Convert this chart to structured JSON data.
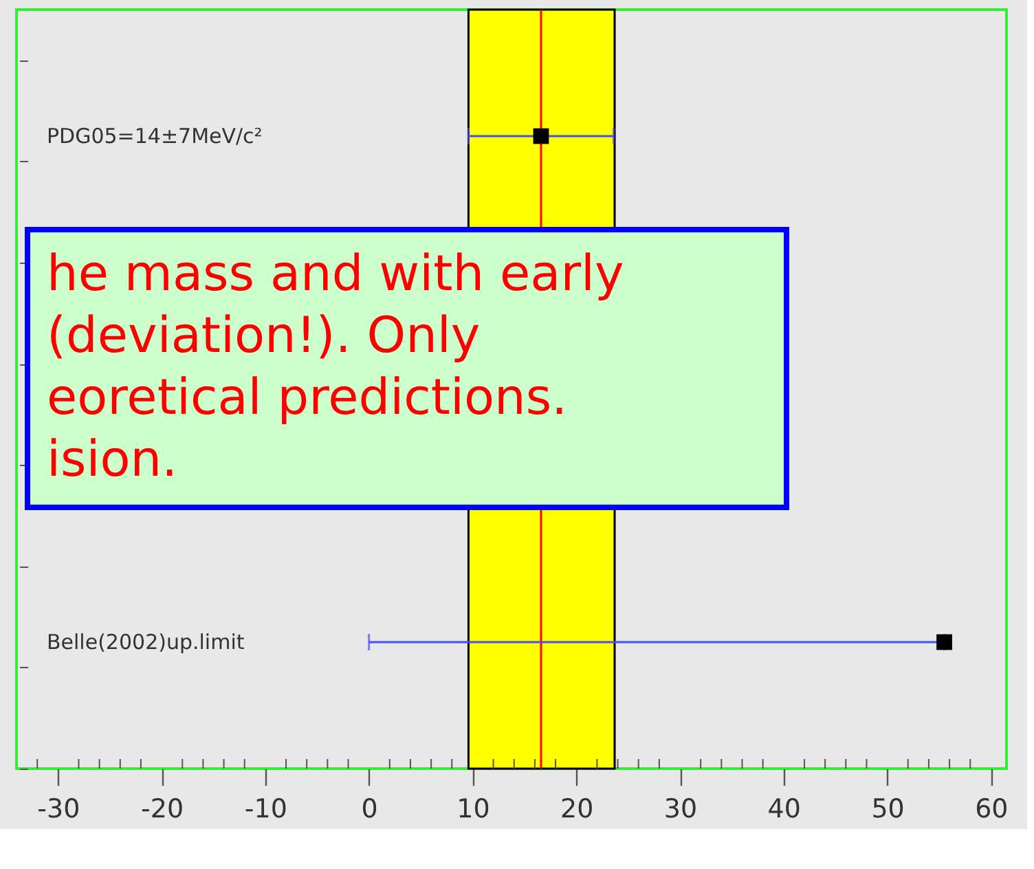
{
  "chart_data": {
    "type": "scatter",
    "orientation": "horizontal",
    "categories": [
      "PDG05=14±7MeV/c²",
      null,
      null,
      null,
      "Belle(2002)up.limit"
    ],
    "series": [
      {
        "color": "#000000",
        "values": [
          16.6,
          null,
          null,
          null,
          55.5
        ],
        "errors": [
          7,
          null,
          null,
          null,
          [
            0,
            55.5
          ]
        ]
      }
    ],
    "marker": "square",
    "xlim": [
      -34,
      61.5
    ],
    "xticks": [
      {
        "value": -32,
        "label": null
      },
      -30,
      {
        "value": -28,
        "label": null
      },
      {
        "value": -26,
        "label": null
      },
      {
        "value": -24,
        "label": null
      },
      {
        "value": -22,
        "label": null
      },
      -20,
      {
        "value": -18,
        "label": null
      },
      {
        "value": -16,
        "label": null
      },
      {
        "value": -14,
        "label": null
      },
      {
        "value": -12,
        "label": null
      },
      -10,
      {
        "value": -8,
        "label": null
      },
      {
        "value": -6,
        "label": null
      },
      {
        "value": -4,
        "label": null
      },
      {
        "value": -2,
        "label": null
      },
      0,
      {
        "value": 2,
        "label": null
      },
      {
        "value": 4,
        "label": null
      },
      {
        "value": 6,
        "label": null
      },
      {
        "value": 8,
        "label": null
      },
      10,
      {
        "value": 12,
        "label": null
      },
      {
        "value": 14,
        "label": null
      },
      {
        "value": 16,
        "label": null
      },
      {
        "value": 18,
        "label": null
      },
      20,
      {
        "value": 22,
        "label": null
      },
      {
        "value": 24,
        "label": null
      },
      {
        "value": 26,
        "label": null
      },
      {
        "value": 28,
        "label": null
      },
      30,
      {
        "value": 32,
        "label": null
      },
      {
        "value": 34,
        "label": null
      },
      {
        "value": 36,
        "label": null
      },
      {
        "value": 38,
        "label": null
      },
      40,
      {
        "value": 42,
        "label": null
      },
      {
        "value": 44,
        "label": null
      },
      {
        "value": 46,
        "label": null
      },
      {
        "value": 48,
        "label": null
      },
      50,
      {
        "value": 52,
        "label": null
      },
      {
        "value": 54,
        "label": null
      },
      {
        "value": 56,
        "label": null
      },
      {
        "value": 58,
        "label": null
      },
      60
    ],
    "tick_labels": "x",
    "grid": false,
    "ref_lines": [
      {
        "axis": "x",
        "value": 16.6,
        "color": "#ff0000"
      }
    ],
    "bands": [
      {
        "axis": "x",
        "from": 9.6,
        "to": 23.7,
        "color": "#ffff00"
      }
    ],
    "annotations": [
      "he mass and with early",
      "(deviation!). Only",
      "eoretical predictions.",
      "ision."
    ]
  }
}
